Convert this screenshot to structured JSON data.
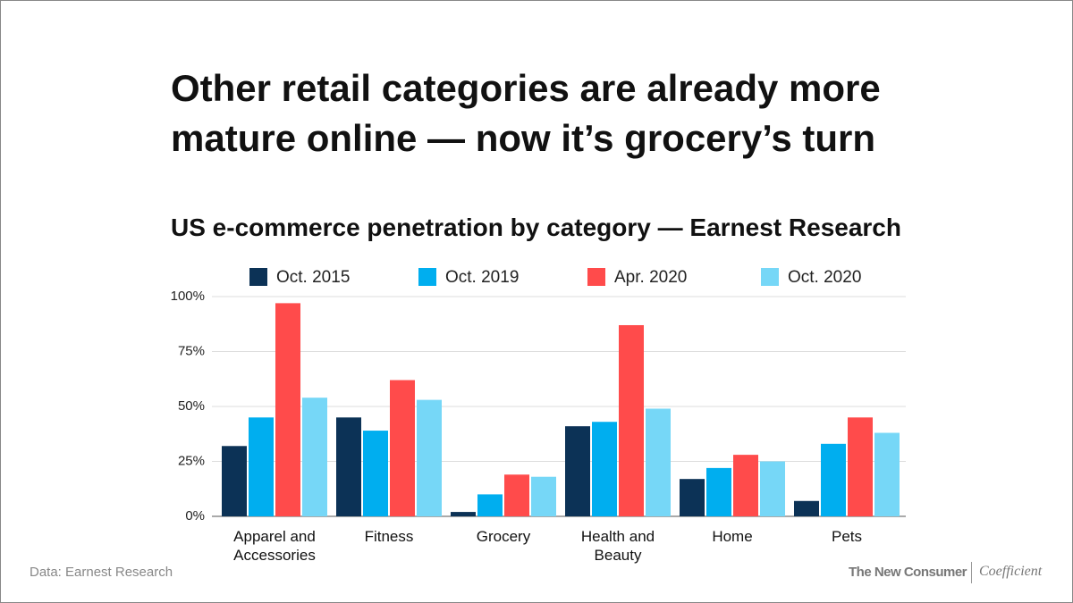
{
  "chart_data": {
    "type": "bar",
    "title": "Other retail categories are already more mature online — now it’s grocery’s turn",
    "subtitle": "US e-commerce penetration by category — Earnest Research",
    "categories": [
      "Apparel and Accessories",
      "Fitness",
      "Grocery",
      "Health and Beauty",
      "Home",
      "Pets"
    ],
    "series": [
      {
        "name": "Oct. 2015",
        "color": "#0c3256",
        "values": [
          32,
          45,
          2,
          41,
          17,
          7
        ]
      },
      {
        "name": "Oct. 2019",
        "color": "#00aeef",
        "values": [
          45,
          39,
          10,
          43,
          22,
          33
        ]
      },
      {
        "name": "Apr. 2020",
        "color": "#ff4b4b",
        "values": [
          97,
          62,
          19,
          87,
          28,
          45
        ]
      },
      {
        "name": "Oct. 2020",
        "color": "#76d7f7",
        "values": [
          54,
          53,
          18,
          49,
          25,
          38
        ]
      }
    ],
    "ylim": [
      0,
      100
    ],
    "yticks": [
      {
        "value": 0,
        "label": "0%"
      },
      {
        "value": 25,
        "label": "25%"
      },
      {
        "value": 50,
        "label": "50%"
      },
      {
        "value": 75,
        "label": "75%"
      },
      {
        "value": 100,
        "label": "100%"
      }
    ],
    "grid": true,
    "source": "Data: Earnest Research",
    "brands": [
      "The New Consumer",
      "Coefficient"
    ]
  }
}
